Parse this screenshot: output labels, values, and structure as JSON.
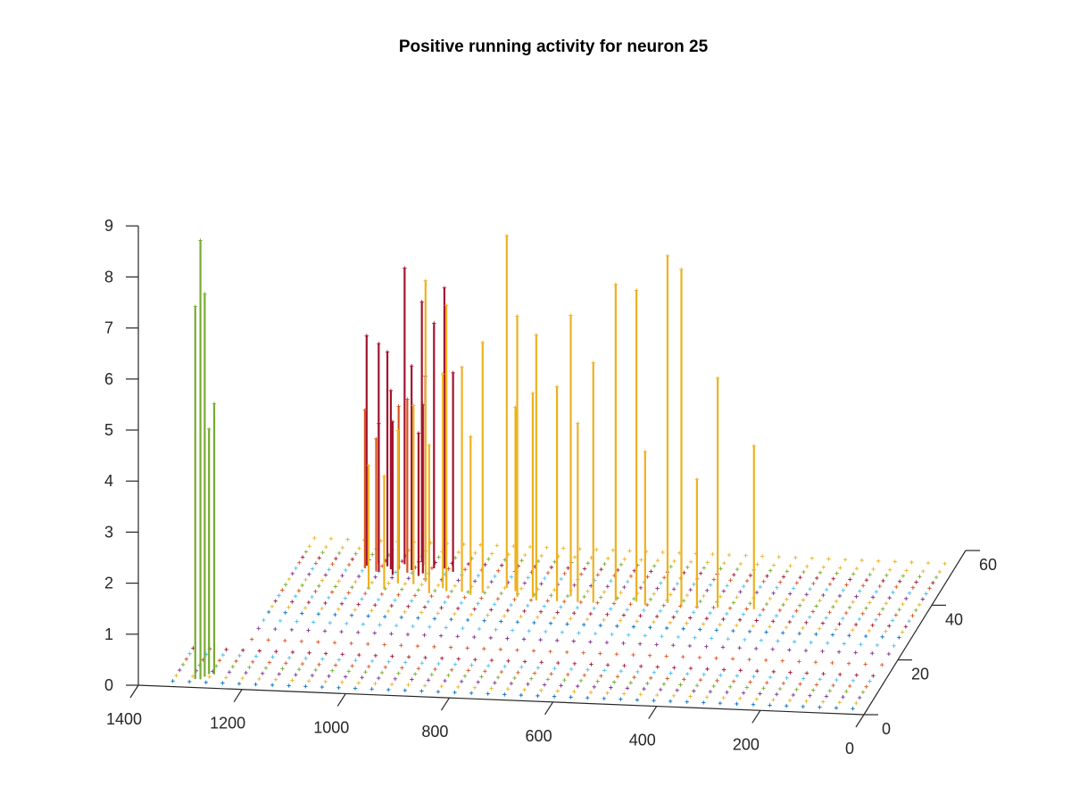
{
  "chart_data": {
    "type": "stem3",
    "title": "Positive running activity for neuron 25",
    "xlabel": "",
    "ylabel": "",
    "zlabel": "",
    "xlim": [
      0,
      1400
    ],
    "ylim": [
      0,
      60
    ],
    "zlim": [
      0,
      9
    ],
    "x_ticks": [
      "1400",
      "1200",
      "1000",
      "800",
      "600",
      "400",
      "200",
      "0"
    ],
    "y_ticks": [
      "0",
      "20",
      "40",
      "60"
    ],
    "z_ticks": [
      "0",
      "1",
      "2",
      "3",
      "4",
      "5",
      "6",
      "7",
      "8",
      "9"
    ],
    "grid": false,
    "marker": "+",
    "note_colors": [
      "#0072BD",
      "#D95319",
      "#EDB120",
      "#7E2F8E",
      "#77AC30",
      "#4DBEEE",
      "#A2142F"
    ],
    "series": [
      {
        "color": "#77AC30",
        "stems": [
          [
            1290,
            3,
            8.6
          ],
          [
            1300,
            3,
            7.3
          ],
          [
            1285,
            4,
            7.5
          ],
          [
            1270,
            5,
            5.3
          ],
          [
            1280,
            5,
            4.8
          ]
        ]
      },
      {
        "color": "#A2142F",
        "stems": [
          [
            1110,
            46,
            4.5
          ],
          [
            1090,
            47,
            4.3
          ],
          [
            1070,
            46,
            4.2
          ],
          [
            1040,
            47,
            5.8
          ],
          [
            1010,
            48,
            5.1
          ],
          [
            1000,
            47,
            3.7
          ],
          [
            980,
            46,
            4.8
          ],
          [
            1060,
            45,
            3.5
          ],
          [
            1080,
            44,
            2.9
          ],
          [
            1020,
            45,
            4.0
          ],
          [
            995,
            44,
            3.3
          ],
          [
            960,
            46,
            5.5
          ],
          [
            940,
            45,
            3.9
          ],
          [
            1050,
            43,
            3.0
          ],
          [
            1000,
            43,
            2.8
          ]
        ]
      },
      {
        "color": "#EDB120",
        "stems": [
          [
            1030,
            40,
            3.0
          ],
          [
            1000,
            40,
            3.5
          ],
          [
            980,
            41,
            5.9
          ],
          [
            940,
            39,
            4.2
          ],
          [
            930,
            38,
            5.6
          ],
          [
            900,
            38,
            4.4
          ],
          [
            860,
            38,
            4.9
          ],
          [
            820,
            40,
            6.9
          ],
          [
            800,
            39,
            3.6
          ],
          [
            790,
            37,
            5.5
          ],
          [
            760,
            37,
            4.0
          ],
          [
            750,
            36,
            5.2
          ],
          [
            710,
            36,
            4.2
          ],
          [
            690,
            38,
            5.5
          ],
          [
            670,
            36,
            3.5
          ],
          [
            640,
            36,
            4.7
          ],
          [
            600,
            37,
            6.2
          ],
          [
            560,
            37,
            6.1
          ],
          [
            540,
            36,
            3.0
          ],
          [
            500,
            37,
            6.8
          ],
          [
            470,
            36,
            6.6
          ],
          [
            440,
            36,
            2.5
          ],
          [
            400,
            36,
            4.5
          ],
          [
            330,
            36,
            3.2
          ],
          [
            1080,
            38,
            2.4
          ],
          [
            1050,
            38,
            2.2
          ],
          [
            960,
            37,
            2.9
          ],
          [
            880,
            37,
            3.1
          ]
        ]
      },
      {
        "color": "#D95319",
        "stems": [
          [
            1110,
            45,
            3.1
          ],
          [
            1085,
            44,
            2.6
          ],
          [
            1045,
            45,
            3.2
          ],
          [
            1025,
            44,
            3.4
          ]
        ]
      }
    ],
    "baseline_rows": [
      {
        "y": 2,
        "color": "#0072BD"
      },
      {
        "y": 4,
        "color": "#EDB120"
      },
      {
        "y": 6,
        "color": "#7E2F8E"
      },
      {
        "y": 8,
        "color": "#77AC30"
      },
      {
        "y": 10,
        "color": "#D95319"
      },
      {
        "y": 12,
        "color": "#4DBEEE"
      },
      {
        "y": 14,
        "color": "#A2142F"
      },
      {
        "y": 18,
        "color": "#D95319"
      },
      {
        "y": 22,
        "color": "#7E2F8E"
      },
      {
        "y": 25,
        "color": "#4DBEEE"
      },
      {
        "y": 28,
        "color": "#0072BD"
      },
      {
        "y": 30,
        "color": "#EDB120"
      },
      {
        "y": 32,
        "color": "#A2142F"
      },
      {
        "y": 34,
        "color": "#4DBEEE"
      },
      {
        "y": 36,
        "color": "#D95319"
      },
      {
        "y": 38,
        "color": "#77AC30"
      },
      {
        "y": 40,
        "color": "#EDB120"
      },
      {
        "y": 42,
        "color": "#7E2F8E"
      },
      {
        "y": 44,
        "color": "#4DBEEE"
      },
      {
        "y": 46,
        "color": "#D95319"
      },
      {
        "y": 48,
        "color": "#A2142F"
      },
      {
        "y": 50,
        "color": "#77AC30"
      },
      {
        "y": 52,
        "color": "#EDB120"
      },
      {
        "y": 55,
        "color": "#EDB120"
      }
    ]
  }
}
